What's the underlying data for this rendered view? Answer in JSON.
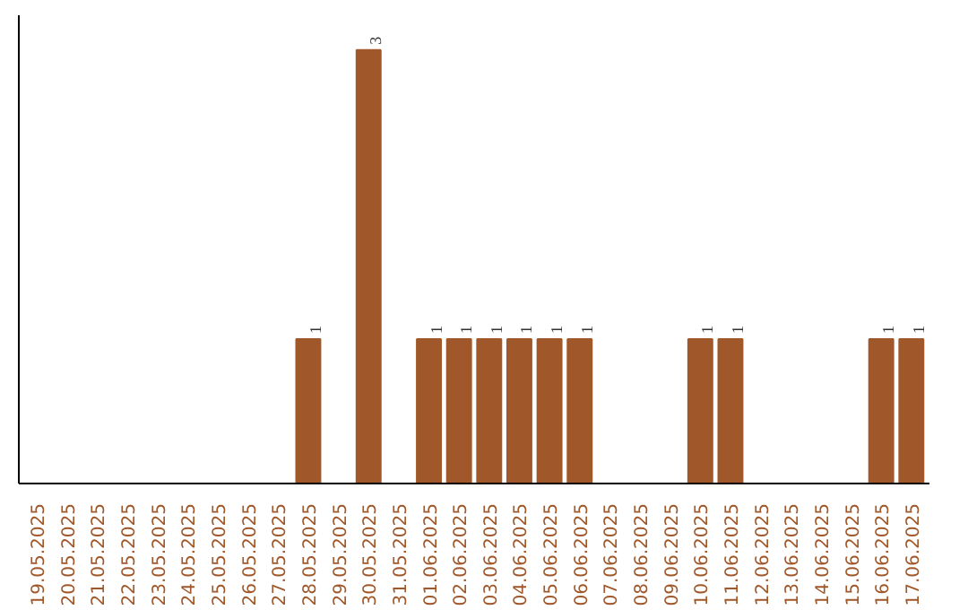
{
  "chart_data": {
    "type": "bar",
    "categories": [
      "19.05.2025",
      "20.05.2025",
      "21.05.2025",
      "22.05.2025",
      "23.05.2025",
      "24.05.2025",
      "25.05.2025",
      "26.05.2025",
      "27.05.2025",
      "28.05.2025",
      "29.05.2025",
      "30.05.2025",
      "31.05.2025",
      "01.06.2025",
      "02.06.2025",
      "03.06.2025",
      "04.06.2025",
      "05.06.2025",
      "06.06.2025",
      "07.06.2025",
      "08.06.2025",
      "09.06.2025",
      "10.06.2025",
      "11.06.2025",
      "12.06.2025",
      "13.06.2025",
      "14.06.2025",
      "15.06.2025",
      "16.06.2025",
      "17.06.2025"
    ],
    "values": [
      0,
      0,
      0,
      0,
      0,
      0,
      0,
      0,
      0,
      1,
      0,
      3,
      0,
      1,
      1,
      1,
      1,
      1,
      1,
      0,
      0,
      0,
      1,
      1,
      0,
      0,
      0,
      0,
      1,
      1
    ],
    "value_labels": [
      null,
      null,
      null,
      null,
      null,
      null,
      null,
      null,
      null,
      "1",
      null,
      "3",
      null,
      "1",
      "1",
      "1",
      "1",
      "1",
      "1",
      null,
      null,
      null,
      "1",
      "1",
      null,
      null,
      null,
      null,
      "1",
      "1"
    ],
    "color": "#a0582a",
    "tick_labels": "x",
    "grid": false
  }
}
